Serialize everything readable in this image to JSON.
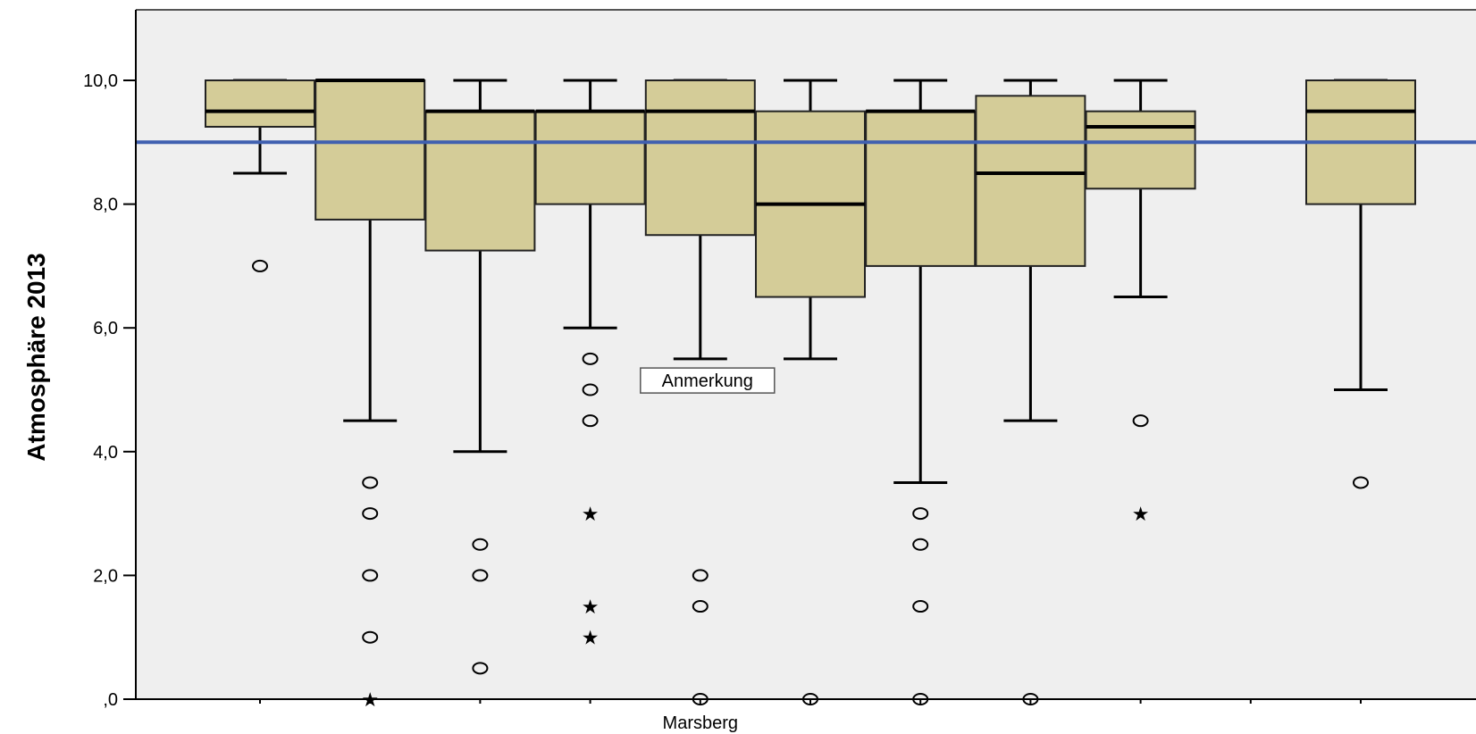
{
  "chart_data": {
    "type": "boxplot",
    "ylabel": "Atmosphäre 2013",
    "ylim": [
      0,
      11
    ],
    "y_ticks": [
      0,
      2,
      4,
      6,
      8,
      10
    ],
    "y_tick_labels": [
      ",0",
      "2,0",
      "4,0",
      "6,0",
      "8,0",
      "10,0"
    ],
    "grid": false,
    "reference_line": {
      "y": 9.0,
      "color": "#4060b0"
    },
    "box_fill": "#d4cc98",
    "plot_background": "#efefef",
    "category_count": 11,
    "categories": [
      "",
      "",
      "",
      "",
      "Marsberg",
      "",
      "",
      "",
      "",
      "",
      ""
    ],
    "annotation": {
      "text": "Anmerkung",
      "category_index": 5,
      "y": 5.15
    },
    "boxes": [
      {
        "category_index": 1,
        "whisker_low": 8.5,
        "q1": 9.25,
        "median": 9.5,
        "q3": 10,
        "whisker_high": 10,
        "outliers": [
          7.0
        ],
        "extremes": []
      },
      {
        "category_index": 2,
        "whisker_low": 4.5,
        "q1": 7.75,
        "median": 10,
        "q3": 10,
        "whisker_high": 10,
        "outliers": [
          3.5,
          3.0,
          2.0,
          1.0
        ],
        "extremes": [
          0.0
        ]
      },
      {
        "category_index": 3,
        "whisker_low": 4.0,
        "q1": 7.25,
        "median": 9.5,
        "q3": 9.5,
        "whisker_high": 10,
        "outliers": [
          2.5,
          2.0,
          0.5
        ],
        "extremes": []
      },
      {
        "category_index": 4,
        "whisker_low": 6.0,
        "q1": 8.0,
        "median": 9.5,
        "q3": 9.5,
        "whisker_high": 10,
        "outliers": [
          5.5,
          5.0,
          4.5
        ],
        "extremes": [
          3.0,
          1.5,
          1.0
        ]
      },
      {
        "category_index": 5,
        "whisker_low": 5.5,
        "q1": 7.5,
        "median": 9.5,
        "q3": 10,
        "whisker_high": 10,
        "outliers": [
          2.0,
          1.5,
          0.0
        ],
        "extremes": []
      },
      {
        "category_index": 6,
        "whisker_low": 5.5,
        "q1": 6.5,
        "median": 8.0,
        "q3": 9.5,
        "whisker_high": 10,
        "outliers": [
          0.0
        ],
        "extremes": []
      },
      {
        "category_index": 7,
        "whisker_low": 3.5,
        "q1": 7.0,
        "median": 9.5,
        "q3": 9.5,
        "whisker_high": 10,
        "outliers": [
          3.0,
          2.5,
          1.5,
          0.0
        ],
        "extremes": []
      },
      {
        "category_index": 8,
        "whisker_low": 4.5,
        "q1": 7.0,
        "median": 8.5,
        "q3": 9.75,
        "whisker_high": 10,
        "outliers": [
          0.0
        ],
        "extremes": []
      },
      {
        "category_index": 9,
        "whisker_low": 6.5,
        "q1": 8.25,
        "median": 9.25,
        "q3": 9.5,
        "whisker_high": 10,
        "outliers": [
          4.5
        ],
        "extremes": [
          3.0
        ]
      },
      {
        "category_index": 11,
        "whisker_low": 5.0,
        "q1": 8.0,
        "median": 9.5,
        "q3": 10,
        "whisker_high": 10,
        "outliers": [
          3.5
        ],
        "extremes": []
      }
    ]
  }
}
